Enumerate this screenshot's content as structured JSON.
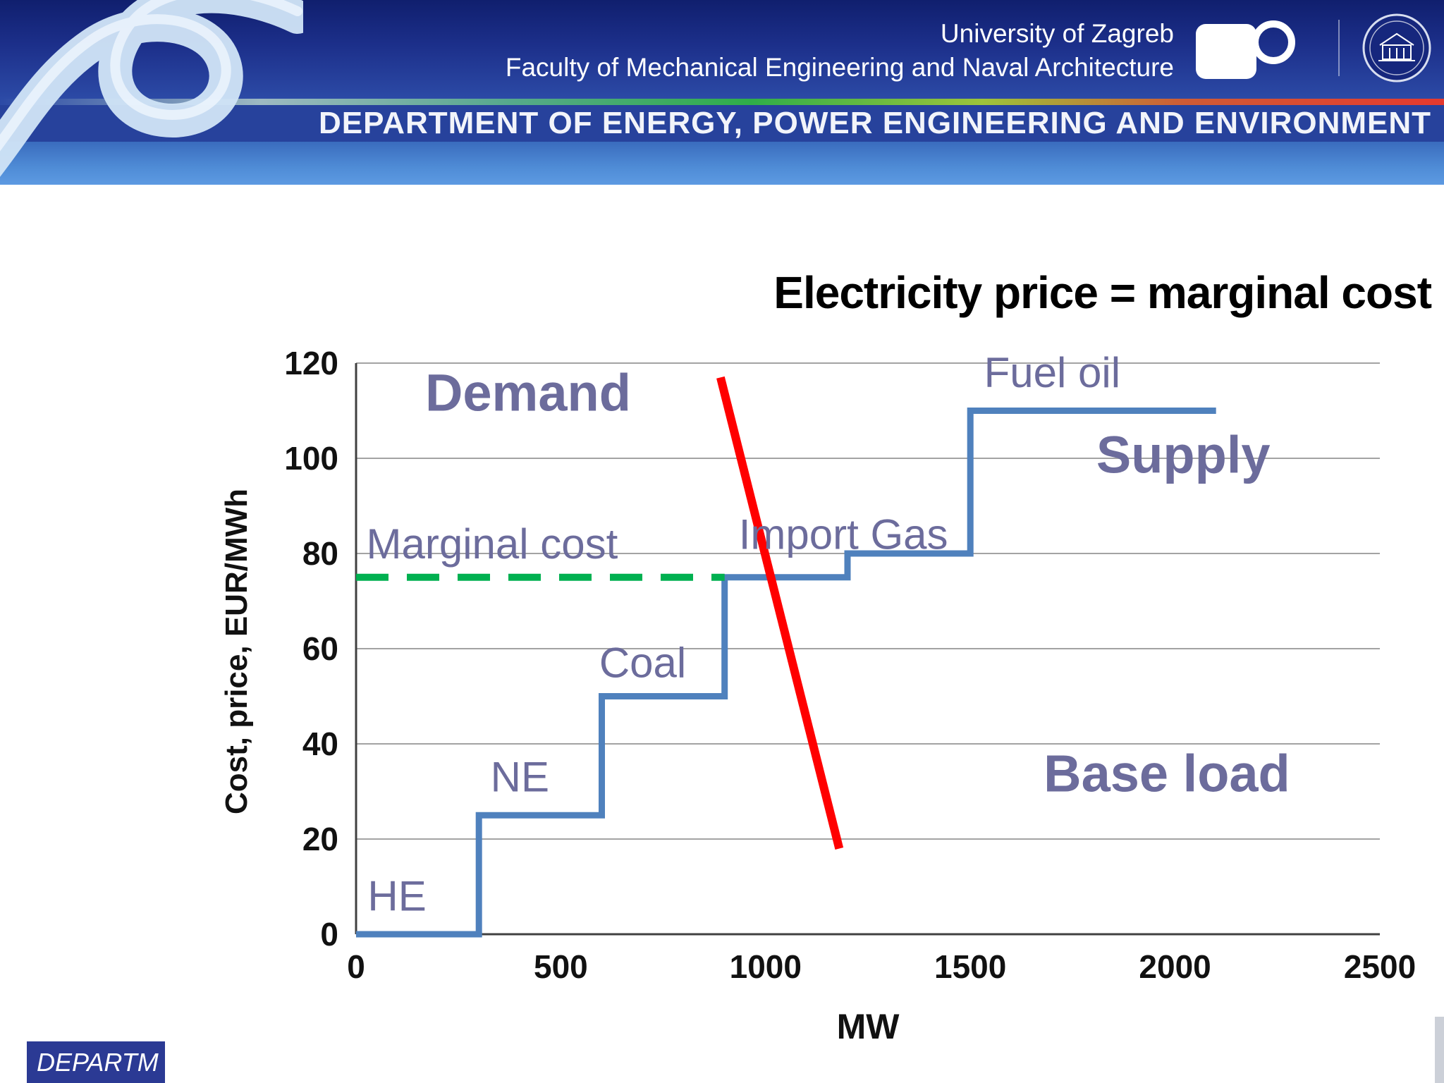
{
  "header": {
    "university": "University of Zagreb",
    "faculty": "Faculty of Mechanical Engineering and Naval Architecture",
    "department_banner": "DEPARTMENT OF ENERGY, POWER ENGINEERING AND ENVIRONMENT"
  },
  "footer": {
    "left_text": "DEPARTM"
  },
  "chart_data": {
    "type": "line",
    "title": "Electricity price = marginal cost",
    "xlabel": "MW",
    "ylabel": "Cost, price, EUR/MWh",
    "xlim": [
      0,
      2500
    ],
    "ylim": [
      0,
      120
    ],
    "xticks": [
      0,
      500,
      1000,
      1500,
      2000,
      2500
    ],
    "yticks": [
      0,
      20,
      40,
      60,
      80,
      100,
      120
    ],
    "grid": "horizontal",
    "series": [
      {
        "name": "Supply",
        "color": "#4f81bd",
        "width": 9,
        "points": [
          [
            0,
            0
          ],
          [
            300,
            0
          ],
          [
            300,
            25
          ],
          [
            600,
            25
          ],
          [
            600,
            50
          ],
          [
            900,
            50
          ],
          [
            900,
            75
          ],
          [
            1200,
            75
          ],
          [
            1200,
            80
          ],
          [
            1500,
            80
          ],
          [
            1500,
            110
          ],
          [
            2100,
            110
          ]
        ]
      },
      {
        "name": "Demand",
        "color": "#ff0000",
        "width": 12,
        "points": [
          [
            890,
            117
          ],
          [
            1180,
            18
          ]
        ]
      },
      {
        "name": "Marginal cost",
        "color": "#00b050",
        "width": 10,
        "dash": true,
        "points": [
          [
            0,
            75
          ],
          [
            900,
            75
          ]
        ]
      }
    ],
    "annotations": [
      {
        "text": "Demand",
        "x": 420,
        "y": 110,
        "bold": true
      },
      {
        "text": "Fuel oil",
        "x": 1700,
        "y": 115
      },
      {
        "text": "Supply",
        "x": 2020,
        "y": 97,
        "bold": true
      },
      {
        "text": "Marginal cost",
        "x": 25,
        "y": 79,
        "anchor": "start"
      },
      {
        "text": "Import Gas",
        "x": 1190,
        "y": 81
      },
      {
        "text": "Coal",
        "x": 700,
        "y": 54
      },
      {
        "text": "NE",
        "x": 400,
        "y": 30
      },
      {
        "text": "HE",
        "x": 100,
        "y": 5
      },
      {
        "text": "Base load",
        "x": 1980,
        "y": 30,
        "bold": true
      }
    ]
  }
}
